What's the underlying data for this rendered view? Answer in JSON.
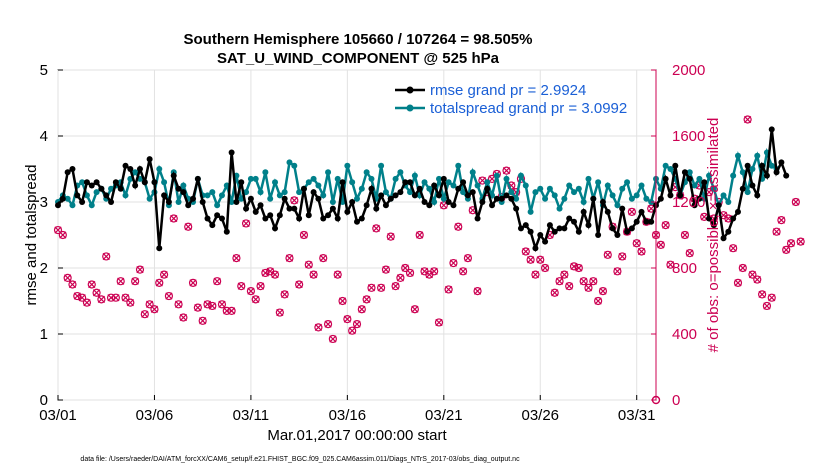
{
  "chart_data": {
    "type": "line",
    "title_line1": "Southern Hemisphere 105660 / 107264 = 98.505%",
    "title_line2": "SAT_U_WIND_COMPONENT @ 525 hPa",
    "xlabel": "Mar.01,2017 00:00:00 start",
    "ylabel_left": "rmse and totalspread",
    "ylabel_right": "# of obs: o=possible; ×=assimilated",
    "footnote": "data file: /Users/raeder/DAI/ATM_forcXX/CAM6_setup/f.e21.FHIST_BGC.f09_025.CAM6assim.011/Diags_NTrS_2017-03/obs_diag_output.nc",
    "x_range": [
      1,
      32
    ],
    "x_ticks": [
      {
        "value": 1,
        "label": "03/01"
      },
      {
        "value": 6,
        "label": "03/06"
      },
      {
        "value": 11,
        "label": "03/11"
      },
      {
        "value": 16,
        "label": "03/16"
      },
      {
        "value": 21,
        "label": "03/21"
      },
      {
        "value": 26,
        "label": "03/26"
      },
      {
        "value": 31,
        "label": "03/31"
      }
    ],
    "ylim_left": [
      0,
      5
    ],
    "yticks_left": [
      "0",
      "1",
      "2",
      "3",
      "4",
      "5"
    ],
    "ylim_right": [
      0,
      2000
    ],
    "yticks_right": [
      "0",
      "400",
      "800",
      "1200",
      "1600",
      "2000"
    ],
    "legend": {
      "position": "top-right",
      "rmse_label": "rmse grand pr = 2.9924",
      "spread_label": "totalspread grand pr = 3.0992"
    },
    "colors": {
      "rmse": "#000000",
      "spread": "#00808a",
      "obs": "#cc0052",
      "right_axis": "#cc0052",
      "legend_text": "#1a5fd6"
    },
    "series": [
      {
        "name": "rmse",
        "axis": "left",
        "step": 0.25,
        "start": 1,
        "values": [
          2.95,
          3.05,
          3.45,
          3.5,
          3.1,
          3.0,
          3.3,
          3.25,
          3.3,
          3.2,
          3.1,
          3.0,
          3.3,
          3.2,
          3.55,
          3.5,
          3.25,
          3.5,
          3.3,
          3.65,
          3.3,
          2.3,
          3.1,
          3.0,
          3.4,
          3.2,
          3.15,
          2.95,
          3.05,
          3.35,
          3.0,
          2.75,
          2.65,
          2.8,
          2.75,
          2.55,
          3.75,
          3.0,
          3.3,
          2.9,
          3.05,
          2.85,
          2.95,
          2.75,
          2.8,
          2.6,
          2.8,
          3.05,
          2.9,
          2.9,
          2.75,
          3.2,
          2.8,
          3.15,
          3.05,
          2.75,
          2.8,
          2.9,
          2.75,
          3.3,
          2.85,
          3.0,
          2.7,
          2.75,
          2.95,
          3.2,
          2.9,
          3.1,
          2.95,
          3.05,
          3.1,
          3.15,
          3.3,
          3.3,
          3.1,
          3.2,
          3.0,
          2.95,
          3.25,
          3.1,
          3.35,
          3.0,
          2.95,
          3.2,
          3.3,
          3.1,
          3.15,
          2.75,
          3.0,
          3.2,
          2.95,
          3.05,
          3.05,
          3.1,
          3.05,
          2.9,
          2.6,
          2.65,
          2.55,
          2.3,
          2.5,
          2.4,
          2.65,
          2.55,
          2.6,
          2.6,
          2.75,
          2.7,
          2.55,
          2.85,
          2.65,
          3.05,
          2.5,
          3.0,
          2.85,
          2.6,
          2.5,
          2.9,
          2.55,
          2.6,
          2.7,
          2.85,
          2.7,
          2.7,
          2.95,
          3.05,
          3.35,
          3.1,
          3.55,
          3.1,
          3.45,
          3.35,
          2.95,
          3.05,
          3.3,
          2.75,
          2.65,
          2.95,
          2.45,
          2.55,
          2.75,
          2.85,
          3.2,
          3.55,
          3.25,
          3.1,
          3.55,
          3.4,
          4.1,
          3.45,
          3.6,
          3.4
        ]
      },
      {
        "name": "totalspread",
        "axis": "left",
        "step": 0.25,
        "start": 1,
        "values": [
          3.0,
          3.1,
          3.05,
          2.95,
          3.25,
          3.3,
          3.1,
          2.95,
          3.15,
          3.2,
          3.05,
          3.2,
          3.25,
          3.3,
          3.1,
          3.35,
          3.45,
          3.35,
          3.3,
          3.05,
          3.15,
          3.5,
          3.3,
          2.95,
          3.45,
          3.0,
          3.25,
          3.05,
          3.0,
          3.35,
          3.1,
          3.1,
          3.15,
          2.95,
          3.1,
          3.25,
          3.0,
          3.4,
          3.05,
          3.15,
          3.35,
          3.35,
          3.15,
          3.45,
          3.05,
          3.3,
          3.1,
          3.15,
          3.6,
          3.55,
          3.15,
          3.2,
          3.3,
          3.35,
          3.25,
          3.1,
          3.45,
          3.0,
          3.35,
          3.0,
          3.55,
          3.3,
          3.05,
          3.2,
          3.45,
          3.35,
          3.05,
          3.55,
          3.15,
          3.05,
          3.35,
          3.45,
          3.25,
          3.15,
          3.4,
          3.1,
          3.3,
          3.2,
          3.0,
          3.35,
          3.05,
          3.3,
          3.25,
          3.55,
          3.15,
          3.05,
          3.45,
          3.25,
          3.05,
          3.3,
          3.1,
          3.4,
          3.0,
          3.35,
          3.15,
          3.05,
          3.4,
          3.25,
          2.85,
          3.15,
          3.2,
          3.05,
          3.2,
          3.1,
          2.9,
          3.05,
          3.25,
          3.15,
          3.2,
          3.0,
          3.35,
          3.05,
          3.3,
          2.95,
          3.25,
          3.1,
          2.95,
          3.2,
          3.3,
          3.05,
          3.1,
          3.25,
          3.05,
          3.0,
          3.35,
          3.2,
          3.55,
          3.5,
          3.35,
          3.1,
          3.3,
          3.45,
          3.25,
          3.35,
          3.05,
          3.4,
          3.2,
          2.95,
          3.1,
          3.0,
          3.4,
          3.7,
          3.45,
          3.15,
          3.5,
          3.7,
          3.35,
          3.75,
          3.55,
          3.5
        ]
      },
      {
        "name": "obs_possible_and_assimilated",
        "axis": "right",
        "step": 0.25,
        "start": 1,
        "values": [
          1030,
          1000,
          740,
          700,
          630,
          620,
          590,
          700,
          650,
          610,
          870,
          620,
          620,
          720,
          620,
          590,
          720,
          790,
          520,
          580,
          550,
          710,
          760,
          630,
          1100,
          580,
          500,
          1050,
          710,
          560,
          480,
          580,
          570,
          720,
          580,
          540,
          540,
          860,
          690,
          1070,
          660,
          610,
          690,
          770,
          780,
          760,
          530,
          640,
          860,
          1210,
          700,
          1000,
          820,
          760,
          440,
          860,
          460,
          370,
          760,
          600,
          490,
          420,
          460,
          550,
          610,
          680,
          1040,
          680,
          790,
          990,
          690,
          740,
          800,
          770,
          550,
          1000,
          780,
          760,
          780,
          470,
          1180,
          670,
          830,
          1050,
          780,
          860,
          1150,
          660,
          1330,
          1260,
          1340,
          1370,
          1230,
          1390,
          1300,
          1260,
          1340,
          900,
          850,
          760,
          850,
          800,
          1000,
          650,
          720,
          760,
          690,
          810,
          800,
          720,
          680,
          720,
          600,
          660,
          880,
          1050,
          780,
          870,
          1020,
          1140,
          950,
          900,
          1080,
          1160,
          1000,
          940,
          1060,
          820,
          1290,
          1240,
          1000,
          890,
          1220,
          1300,
          1110,
          1260,
          1100,
          1200,
          1120,
          1100,
          920,
          710,
          800,
          1700,
          760,
          730,
          640,
          570,
          620,
          1020,
          1090,
          910,
          950,
          1200,
          960
        ]
      }
    ]
  }
}
